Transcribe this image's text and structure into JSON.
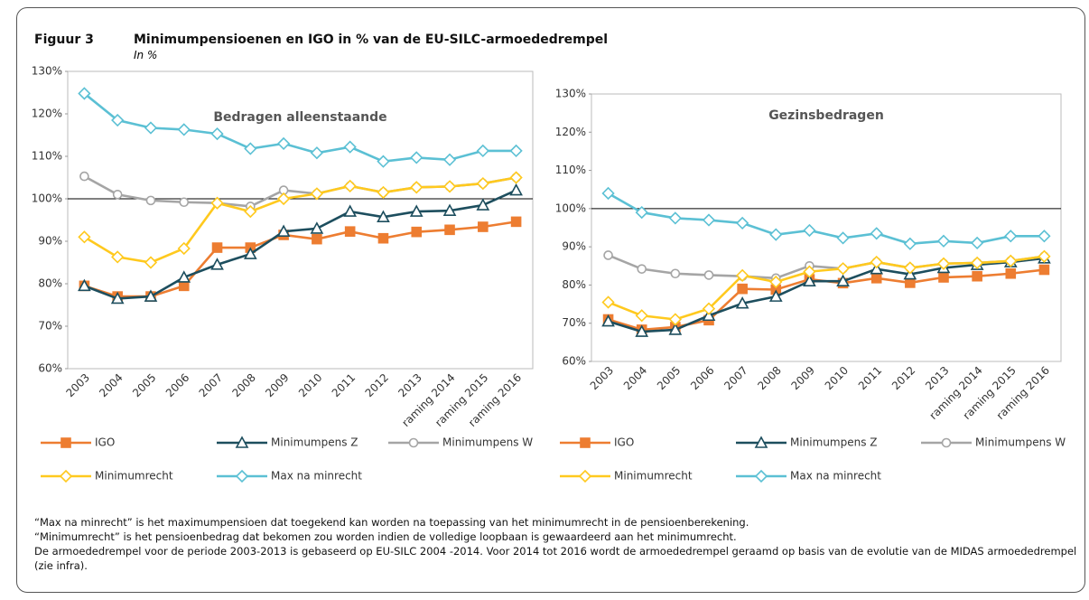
{
  "figure": {
    "label": "Figuur 3",
    "title": "Minimumpensioenen en IGO in % van de EU-SILC-armoededrempel",
    "subtitle": "In %"
  },
  "chart_data": [
    {
      "type": "line",
      "title": "Bedragen alleenstaande",
      "categories": [
        "2003",
        "2004",
        "2005",
        "2006",
        "2007",
        "2008",
        "2009",
        "2010",
        "2011",
        "2012",
        "2013",
        "raming 2014",
        "raming 2015",
        "raming 2016"
      ],
      "series": [
        {
          "name": "IGO",
          "color": "#ed7d31",
          "marker": "square",
          "values": [
            79.5,
            77,
            77,
            79.5,
            88.5,
            88.5,
            91.5,
            90.5,
            92.3,
            90.7,
            92.2,
            92.7,
            93.4,
            94.6
          ]
        },
        {
          "name": "Minimumpens Z",
          "color": "#1d4e5e",
          "marker": "triangle",
          "values": [
            79.5,
            76.5,
            77,
            81.5,
            84.5,
            87,
            92.3,
            93,
            97,
            95.7,
            97,
            97.2,
            98.5,
            102
          ]
        },
        {
          "name": "Minimumpens W",
          "color": "#a5a5a5",
          "marker": "circle",
          "values": [
            105.3,
            101,
            99.6,
            99.2,
            99,
            98.2,
            102,
            101.2,
            103,
            101.5,
            102.7,
            102.9,
            103.6,
            105
          ]
        },
        {
          "name": "Minimumrecht",
          "color": "#ffc91e",
          "marker": "diamond",
          "values": [
            91,
            86.3,
            85,
            88.3,
            99,
            97,
            100,
            101.2,
            103,
            101.5,
            102.7,
            102.9,
            103.6,
            105
          ]
        },
        {
          "name": "Max na minrecht",
          "color": "#5bc0d4",
          "marker": "diamond",
          "values": [
            124.8,
            118.5,
            116.7,
            116.3,
            115.3,
            111.8,
            113,
            110.8,
            112.2,
            108.8,
            109.7,
            109.2,
            111.3,
            111.3
          ]
        }
      ],
      "ylim": [
        60,
        130
      ],
      "yticks": [
        {
          "value": 60,
          "label": "60%"
        },
        {
          "value": 70,
          "label": "70%"
        },
        {
          "value": 80,
          "label": "80%"
        },
        {
          "value": 90,
          "label": "90%"
        },
        {
          "value": 100,
          "label": "100%"
        },
        {
          "value": 110,
          "label": "110%"
        },
        {
          "value": 120,
          "label": "120%"
        },
        {
          "value": 130,
          "label": "130%"
        }
      ],
      "hline": 100,
      "grid": false
    },
    {
      "type": "line",
      "title": "Gezinsbedragen",
      "categories": [
        "2003",
        "2004",
        "2005",
        "2006",
        "2007",
        "2008",
        "2009",
        "2010",
        "2011",
        "2012",
        "2013",
        "raming 2014",
        "raming 2015",
        "raming 2016"
      ],
      "series": [
        {
          "name": "IGO",
          "color": "#ed7d31",
          "marker": "square",
          "values": [
            71,
            68.3,
            69,
            70.8,
            79,
            78.8,
            81.5,
            80.5,
            81.8,
            80.6,
            82,
            82.3,
            83,
            84
          ]
        },
        {
          "name": "Minimumpens Z",
          "color": "#1d4e5e",
          "marker": "triangle",
          "values": [
            70.5,
            67.8,
            68.3,
            72,
            75.2,
            77,
            81,
            81,
            84.2,
            82.8,
            84.5,
            85.3,
            86,
            87
          ]
        },
        {
          "name": "Minimumpens W",
          "color": "#a5a5a5",
          "marker": "circle",
          "values": [
            87.8,
            84.2,
            83,
            82.6,
            82.3,
            81.8,
            85,
            84.3,
            86,
            84.5,
            85.6,
            85.8,
            86.3,
            87.5
          ]
        },
        {
          "name": "Minimumrecht",
          "color": "#ffc91e",
          "marker": "diamond",
          "values": [
            75.5,
            72,
            71,
            73.8,
            82.5,
            80.8,
            83.5,
            84.3,
            86,
            84.5,
            85.6,
            85.8,
            86.3,
            87.5
          ]
        },
        {
          "name": "Max na minrecht",
          "color": "#5bc0d4",
          "marker": "diamond",
          "values": [
            104,
            99,
            97.5,
            97,
            96.2,
            93.2,
            94.3,
            92.3,
            93.5,
            90.8,
            91.5,
            91,
            92.8,
            92.8
          ]
        }
      ],
      "ylim": [
        60,
        130
      ],
      "yticks": [
        {
          "value": 60,
          "label": "60%"
        },
        {
          "value": 70,
          "label": "70%"
        },
        {
          "value": 80,
          "label": "80%"
        },
        {
          "value": 90,
          "label": "90%"
        },
        {
          "value": 100,
          "label": "100%"
        },
        {
          "value": 110,
          "label": "110%"
        },
        {
          "value": 120,
          "label": "120%"
        },
        {
          "value": 130,
          "label": "130%"
        }
      ],
      "hline": 100,
      "grid": false
    }
  ],
  "notes": [
    "“Max na minrecht” is het maximumpensioen dat toegekend kan worden na toepassing van het minimumrecht in de pensioenberekening.",
    "“Minimumrecht” is het pensioenbedrag dat bekomen zou worden indien de volledige loopbaan is gewaardeerd aan het minimumrecht.",
    "De armoededrempel voor de periode 2003-2013 is gebaseerd op EU-SILC 2004 -2014. Voor 2014 tot 2016 wordt de armoededrempel geraamd op basis van de evolutie van de MIDAS armoededrempel (zie infra)."
  ]
}
